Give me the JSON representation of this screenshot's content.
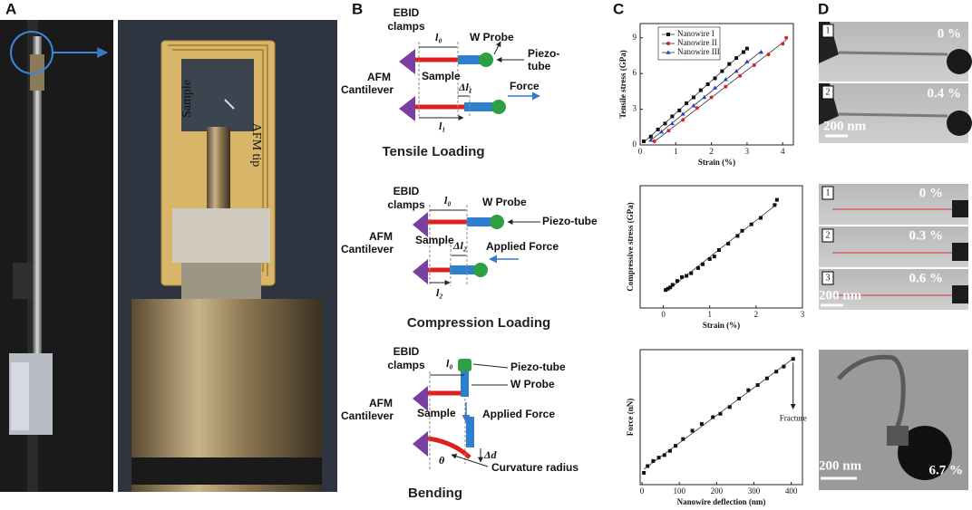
{
  "panels": [
    "A",
    "B",
    "C",
    "D"
  ],
  "photo": {
    "sample": "Sample",
    "afm_tip": "AFM tip"
  },
  "diagrams": [
    {
      "clamps": [
        "EBID",
        "clamps"
      ],
      "l0": "l₀",
      "probe": "W Probe",
      "piezo": [
        "Piezo-",
        "tube"
      ],
      "cantilever": [
        "AFM",
        "Cantilever"
      ],
      "sample": "Sample",
      "dl": "Δl₁",
      "force": "Force",
      "l": "l₁",
      "title": "Tensile Loading"
    },
    {
      "clamps": [
        "EBID",
        "clamps"
      ],
      "l0": "l₀",
      "probe": "W Probe",
      "piezo": "Piezo-tube",
      "cantilever": [
        "AFM",
        "Cantilever"
      ],
      "sample": "Sample",
      "dl": "Δl₂",
      "force": "Applied Force",
      "l": "l₂",
      "title": "Compression Loading"
    },
    {
      "clamps": [
        "EBID",
        "clamps"
      ],
      "l0": "l₀",
      "piezo": "Piezo-tube",
      "probe": "W Probe",
      "cantilever": [
        "AFM",
        "Cantilever"
      ],
      "sample": "Sample",
      "force": "Applied Force",
      "dd": "Δd",
      "theta": "θ",
      "radius": "Curvature radius",
      "title": "Bending"
    }
  ],
  "tem": [
    {
      "frames": [
        {
          "index": "1",
          "strain": "0 %"
        },
        {
          "index": "2",
          "strain": "0.4 %"
        }
      ],
      "scale": "200 nm"
    },
    {
      "frames": [
        {
          "index": "1",
          "strain": "0 %"
        },
        {
          "index": "2",
          "strain": "0.3 %"
        },
        {
          "index": "3",
          "strain": "0.6 %"
        }
      ],
      "scale": "200 nm"
    },
    {
      "strain": "6.7 %",
      "scale": "200 nm"
    }
  ],
  "chart_data": [
    {
      "type": "scatter",
      "x_label": "Strain (%)",
      "y_label": "Tensile stress (GPa)",
      "xlim": [
        0,
        4.3
      ],
      "ylim": [
        0,
        10.2
      ],
      "xticks": [
        0,
        1,
        2,
        3,
        4
      ],
      "yticks": [
        0,
        3,
        6,
        9
      ],
      "legend": "upper left",
      "series": [
        {
          "name": "Nanowire I",
          "color": "#111111",
          "marker": "square",
          "x": [
            0.1,
            0.3,
            0.5,
            0.7,
            0.9,
            1.1,
            1.3,
            1.5,
            1.7,
            1.9,
            2.1,
            2.3,
            2.5,
            2.7,
            2.9,
            3.0
          ],
          "values": [
            0.3,
            0.7,
            1.3,
            1.8,
            2.4,
            2.9,
            3.5,
            4.0,
            4.6,
            5.1,
            5.6,
            6.2,
            6.8,
            7.3,
            7.8,
            8.1
          ]
        },
        {
          "name": "Nanowire II",
          "color": "#e02020",
          "marker": "circle",
          "x": [
            0.4,
            0.8,
            1.2,
            1.6,
            2.0,
            2.4,
            2.8,
            3.2,
            3.6,
            4.0,
            4.1
          ],
          "values": [
            0.3,
            1.2,
            2.1,
            3.1,
            4.0,
            4.9,
            5.8,
            6.7,
            7.6,
            8.5,
            9.0
          ]
        },
        {
          "name": "Nanowire III",
          "color": "#1f3fd0",
          "marker": "triangle",
          "x": [
            0.3,
            0.6,
            0.9,
            1.2,
            1.5,
            1.8,
            2.1,
            2.4,
            2.7,
            3.0,
            3.4
          ],
          "values": [
            0.4,
            1.1,
            1.8,
            2.6,
            3.3,
            4.0,
            4.8,
            5.5,
            6.2,
            7.0,
            7.8
          ]
        }
      ]
    },
    {
      "type": "scatter",
      "x_label": "Strain (%)",
      "y_label": "Compressive stress (GPa)",
      "xlim": [
        -0.5,
        3
      ],
      "ylim": [
        0,
        9.5
      ],
      "xticks": [
        0,
        1,
        2,
        3
      ],
      "series": [
        {
          "color": "#111111",
          "marker": "square",
          "x": [
            0.05,
            0.1,
            0.15,
            0.2,
            0.3,
            0.4,
            0.5,
            0.6,
            0.75,
            0.85,
            1.0,
            1.1,
            1.2,
            1.4,
            1.6,
            1.7,
            1.9,
            2.1,
            2.4,
            2.45
          ],
          "values": [
            1.4,
            1.5,
            1.6,
            1.8,
            2.1,
            2.4,
            2.5,
            2.7,
            3.1,
            3.4,
            3.8,
            4.0,
            4.5,
            5.0,
            5.6,
            6.0,
            6.5,
            7.0,
            8.0,
            8.4
          ]
        }
      ]
    },
    {
      "type": "scatter",
      "x_label": "Nanowire deflection (nm)",
      "y_label": "Force (nN)",
      "xlim": [
        -5,
        430
      ],
      "ylim": [
        0,
        800
      ],
      "xticks": [
        0,
        100,
        200,
        300,
        400
      ],
      "annotation": "Fracture",
      "series": [
        {
          "color": "#111111",
          "marker": "square",
          "x": [
            5,
            15,
            30,
            45,
            60,
            75,
            90,
            110,
            135,
            160,
            190,
            210,
            235,
            260,
            285,
            310,
            335,
            360,
            380,
            405
          ],
          "values": [
            70,
            110,
            140,
            160,
            175,
            200,
            230,
            270,
            320,
            360,
            400,
            420,
            460,
            510,
            560,
            590,
            630,
            670,
            700,
            745
          ]
        }
      ]
    }
  ]
}
